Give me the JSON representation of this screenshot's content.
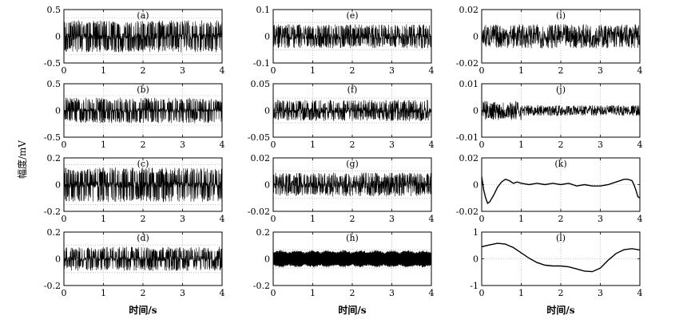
{
  "figure": {
    "ylabel": "幅度/mV",
    "xlabel": "时间/s"
  },
  "chart_data": [
    {
      "label": "(a)",
      "type": "line",
      "xlim": [
        0,
        4
      ],
      "ylim": [
        -0.5,
        0.5
      ],
      "xticks": [
        "0",
        "1",
        "2",
        "3",
        "4"
      ],
      "yticks": [
        "0.5",
        "0",
        "-0.5"
      ],
      "grid": true,
      "signal": {
        "kind": "oscillation",
        "amp": 0.3,
        "core": 0.06
      }
    },
    {
      "label": "(e)",
      "type": "line",
      "xlim": [
        0,
        4
      ],
      "ylim": [
        -0.1,
        0.1
      ],
      "xticks": [
        "0",
        "1",
        "2",
        "3",
        "4"
      ],
      "yticks": [
        "0.1",
        "0",
        "-0.1"
      ],
      "grid": true,
      "signal": {
        "kind": "oscillation",
        "amp": 0.045,
        "core": 0.012
      }
    },
    {
      "label": "(i)",
      "type": "line",
      "xlim": [
        0,
        4
      ],
      "ylim": [
        -0.02,
        0.02
      ],
      "xticks": [
        "0",
        "1",
        "2",
        "3",
        "4"
      ],
      "yticks": [
        "0.02",
        "0",
        "-0.02"
      ],
      "grid": true,
      "signal": {
        "kind": "noise",
        "amp": 0.009
      }
    },
    {
      "label": "(b)",
      "type": "line",
      "xlim": [
        0,
        4
      ],
      "ylim": [
        -0.5,
        0.5
      ],
      "xticks": [
        "0",
        "1",
        "2",
        "3",
        "4"
      ],
      "yticks": [
        "0.5",
        "0",
        "-0.5"
      ],
      "grid": true,
      "signal": {
        "kind": "oscillation",
        "amp": 0.24,
        "core": 0.04
      }
    },
    {
      "label": "(f)",
      "type": "line",
      "xlim": [
        0,
        4
      ],
      "ylim": [
        -0.05,
        0.05
      ],
      "xticks": [
        "0",
        "1",
        "2",
        "3",
        "4"
      ],
      "yticks": [
        "0.05",
        "0",
        "-0.05"
      ],
      "grid": true,
      "signal": {
        "kind": "oscillation",
        "amp": 0.02,
        "core": 0.006
      }
    },
    {
      "label": "(j)",
      "type": "line",
      "xlim": [
        0,
        4
      ],
      "ylim": [
        -0.01,
        0.01
      ],
      "xticks": [
        "0",
        "1",
        "2",
        "3",
        "4"
      ],
      "yticks": [
        "0.01",
        "0",
        "-0.01"
      ],
      "grid": true,
      "signal": {
        "kind": "noise",
        "amp": 0.002
      }
    },
    {
      "label": "(c)",
      "type": "line",
      "xlim": [
        0,
        4
      ],
      "ylim": [
        -0.2,
        0.2
      ],
      "xticks": [
        "0",
        "1",
        "2",
        "3",
        "4"
      ],
      "yticks": [
        "0.2",
        "0",
        "-0.2"
      ],
      "grid": true,
      "signal": {
        "kind": "oscillation",
        "amp": 0.13,
        "core": 0.025
      }
    },
    {
      "label": "(g)",
      "type": "line",
      "xlim": [
        0,
        4
      ],
      "ylim": [
        -0.02,
        0.02
      ],
      "xticks": [
        "0",
        "1",
        "2",
        "3",
        "4"
      ],
      "yticks": [
        "0.02",
        "0",
        "-0.02"
      ],
      "grid": true,
      "signal": {
        "kind": "oscillation",
        "amp": 0.009,
        "core": 0.003
      }
    },
    {
      "label": "(k)",
      "type": "line",
      "xlim": [
        0,
        4
      ],
      "ylim": [
        -0.02,
        0.02
      ],
      "xticks": [
        "0",
        "1",
        "2",
        "3",
        "4"
      ],
      "yticks": [
        "0.02",
        "0",
        "-0.02"
      ],
      "grid": true,
      "x": [
        0,
        0.05,
        0.1,
        0.15,
        0.2,
        0.3,
        0.4,
        0.5,
        0.6,
        0.7,
        0.8,
        0.9,
        1.0,
        1.2,
        1.4,
        1.6,
        1.8,
        2.0,
        2.2,
        2.4,
        2.6,
        2.8,
        3.0,
        3.2,
        3.4,
        3.6,
        3.7,
        3.8,
        3.85,
        3.9,
        3.95,
        4.0
      ],
      "y": [
        0.006,
        -0.004,
        -0.01,
        -0.014,
        -0.013,
        -0.008,
        -0.002,
        0.002,
        0.004,
        0.003,
        0.001,
        0.002,
        0.001,
        0.0,
        0.001,
        0.0,
        0.001,
        0.0,
        0.001,
        -0.001,
        0.0,
        -0.001,
        -0.001,
        0.0,
        0.002,
        0.004,
        0.004,
        0.003,
        0.0,
        -0.004,
        -0.009,
        -0.01
      ]
    },
    {
      "label": "(d)",
      "type": "line",
      "xlim": [
        0,
        4
      ],
      "ylim": [
        -0.2,
        0.2
      ],
      "xticks": [
        "0",
        "1",
        "2",
        "3",
        "4"
      ],
      "yticks": [
        "0.2",
        "0",
        "-0.2"
      ],
      "grid": true,
      "signal": {
        "kind": "oscillation",
        "amp": 0.09,
        "core": 0.02
      }
    },
    {
      "label": "(h)",
      "type": "line",
      "xlim": [
        0,
        4
      ],
      "ylim": [
        -0.2,
        0.2
      ],
      "xticks": [
        "0",
        "1",
        "2",
        "3",
        "4"
      ],
      "yticks": [
        "0.2",
        "0",
        "-0.2"
      ],
      "grid": true,
      "signal": {
        "kind": "beat",
        "amp": 0.06,
        "core": 0.05
      }
    },
    {
      "label": "(l)",
      "type": "line",
      "xlim": [
        0,
        4
      ],
      "ylim": [
        -1,
        1
      ],
      "xticks": [
        "0",
        "1",
        "2",
        "3",
        "4"
      ],
      "yticks": [
        "1",
        "0",
        "-1"
      ],
      "grid": true,
      "x": [
        0,
        0.2,
        0.4,
        0.6,
        0.8,
        1.0,
        1.2,
        1.4,
        1.6,
        1.8,
        2.0,
        2.2,
        2.4,
        2.6,
        2.8,
        3.0,
        3.2,
        3.4,
        3.6,
        3.8,
        4.0
      ],
      "y": [
        0.45,
        0.52,
        0.58,
        0.55,
        0.42,
        0.22,
        0.02,
        -0.14,
        -0.24,
        -0.27,
        -0.27,
        -0.3,
        -0.38,
        -0.46,
        -0.48,
        -0.35,
        -0.05,
        0.2,
        0.34,
        0.38,
        0.33
      ]
    }
  ]
}
